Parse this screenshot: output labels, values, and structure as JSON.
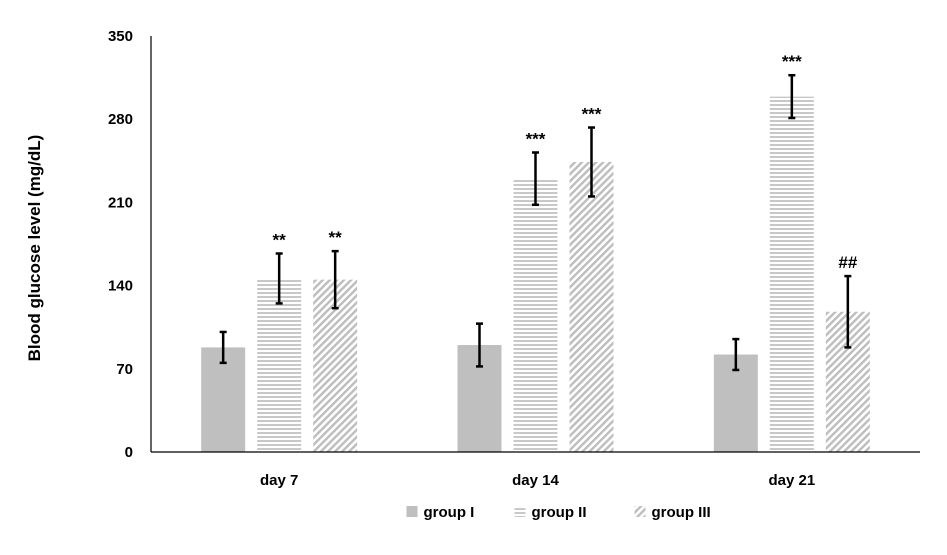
{
  "chart_data": {
    "type": "bar",
    "categories": [
      "day 7",
      "day 14",
      "day 21"
    ],
    "series": [
      {
        "name": "group I",
        "values": [
          88,
          90,
          82
        ],
        "errors": [
          13,
          18,
          13
        ],
        "pattern": "solid"
      },
      {
        "name": "group II",
        "values": [
          146,
          230,
          299
        ],
        "errors": [
          21,
          22,
          18
        ],
        "pattern": "horizontal"
      },
      {
        "name": "group III",
        "values": [
          145,
          244,
          118
        ],
        "errors": [
          24,
          29,
          30
        ],
        "pattern": "diagonal"
      }
    ],
    "significance": [
      [
        "",
        "",
        ""
      ],
      [
        "**",
        "***",
        "***"
      ],
      [
        "**",
        "***",
        "##"
      ]
    ],
    "xlabel": "",
    "ylabel": "Blood glucose level (mg/dL)",
    "ylim": [
      0,
      350
    ],
    "yticks": [
      0,
      70,
      140,
      210,
      280,
      350
    ],
    "grid": false,
    "legend_position": "bottom",
    "colors": {
      "bar": "#bfbfbf",
      "axis": "#000000",
      "error": "#000000"
    }
  }
}
